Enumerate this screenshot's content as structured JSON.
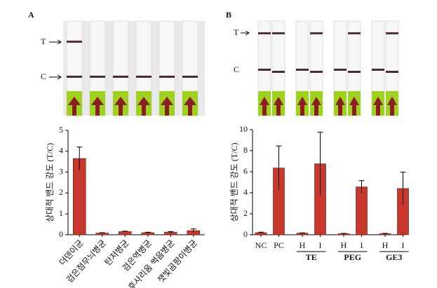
{
  "chart_data": [
    {
      "type": "bar",
      "panel_label": "A",
      "strip_labels": [
        "T",
        "C"
      ],
      "y_label": "상대적 밴드 강도 (T/C)",
      "categories": [
        "더덴이균",
        "검은점무늬병균",
        "탄저병균",
        "검은역병균",
        "후사리움 썩음병균",
        "잿빛곰팡이병균"
      ],
      "values": [
        3.65,
        0.08,
        0.15,
        0.1,
        0.12,
        0.2
      ],
      "errors": [
        0.55,
        0.02,
        0.02,
        0.02,
        0.03,
        0.08
      ],
      "color": "#c8382c",
      "ylim": [
        0,
        5
      ],
      "yticks": [
        0,
        1,
        2,
        3,
        4,
        5
      ]
    },
    {
      "type": "bar",
      "panel_label": "B",
      "strip_labels": [
        "T",
        "C"
      ],
      "y_label": "상대적 밴드 강도 (T/C)",
      "categories": [
        "NC",
        "PC",
        "H",
        "I",
        "H",
        "I",
        "H",
        "I"
      ],
      "groups": [
        "TE",
        "PEG",
        "GE3"
      ],
      "values": [
        0.2,
        6.35,
        0.15,
        6.75,
        0.1,
        4.55,
        0.1,
        4.4
      ],
      "errors": [
        0.05,
        2.1,
        0.03,
        3.0,
        0.03,
        0.6,
        0.03,
        1.55
      ],
      "color": "#c8382c",
      "ylim": [
        0,
        10
      ],
      "yticks": [
        0,
        2,
        4,
        6,
        8,
        10
      ]
    }
  ]
}
